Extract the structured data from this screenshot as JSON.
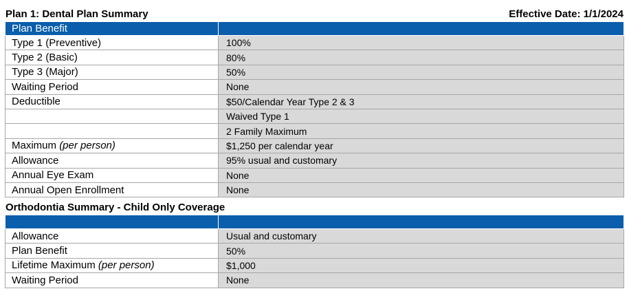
{
  "dental": {
    "title": "Plan 1:  Dental Plan Summary",
    "effective": "Effective Date:  1/1/2024",
    "header": {
      "col1": "Plan Benefit",
      "col2": ""
    },
    "rows": [
      {
        "label": "Type 1 (Preventive)",
        "value": "100%"
      },
      {
        "label": "Type 2 (Basic)",
        "value": "80%"
      },
      {
        "label": "Type 3 (Major)",
        "value": "50%"
      },
      {
        "label": "Waiting Period",
        "value": "None"
      },
      {
        "label": "Deductible",
        "value": "$50/Calendar Year Type 2 & 3"
      },
      {
        "label": "",
        "value": "Waived Type 1"
      },
      {
        "label": "",
        "value": "2 Family Maximum"
      },
      {
        "label": "Maximum",
        "label_em": "(per person)",
        "value": "$1,250 per calendar year"
      },
      {
        "label": "Allowance",
        "value": "95% usual and customary"
      },
      {
        "label": "Annual Eye Exam",
        "value": "None"
      },
      {
        "label": "Annual Open Enrollment",
        "value": "None"
      }
    ]
  },
  "ortho": {
    "title": "Orthodontia Summary - Child Only Coverage",
    "header": {
      "col1": "",
      "col2": ""
    },
    "rows": [
      {
        "label": "Allowance",
        "value": "Usual and customary"
      },
      {
        "label": "Plan Benefit",
        "value": "50%"
      },
      {
        "label": "Lifetime Maximum",
        "label_em": "(per person)",
        "value": "$1,000"
      },
      {
        "label": "Waiting Period",
        "value": "None"
      }
    ]
  }
}
